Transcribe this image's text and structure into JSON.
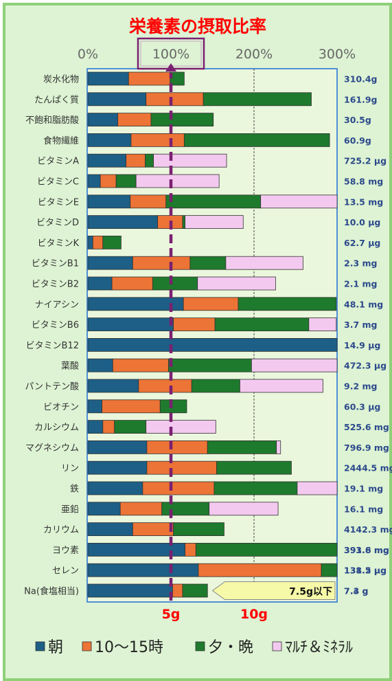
{
  "chart_data": {
    "type": "bar",
    "stacked": true,
    "orientation": "horizontal",
    "title": "栄養素の摂取比率",
    "x_ticks_pct": [
      "0%",
      "100%",
      "200%",
      "300%"
    ],
    "xlim": [
      0,
      300
    ],
    "highlight_tick": "100%",
    "reference_line_pct": 100,
    "grid_lines_pct": [
      200
    ],
    "salt_axis_labels": [
      "5g",
      "10g"
    ],
    "salt_axis_positions_g": [
      5,
      10
    ],
    "salt_annotation": "7.5g以下",
    "salt_annotation_end_g": 7.5,
    "legend_position": "bottom",
    "legend": [
      "朝",
      "10～15時",
      "夕・晩",
      "ﾏﾙﾁ＆ﾐﾈﾗﾙ"
    ],
    "colors": {
      "朝": "#1d5f86",
      "10～15時": "#ec7436",
      "夕・晩": "#1e7a2c",
      "ﾏﾙﾁ＆ﾐﾈﾗﾙ": "#f3c9ef",
      "title": "#ff0000",
      "reference_line": "#7a2070",
      "salt_labels": "#ff0000",
      "totals": "#2d4a8c",
      "plot_border": "#4f8fd6"
    },
    "categories": [
      "炭水化物",
      "たんぱく質",
      "不飽和脂肪酸",
      "食物繊維",
      "ビタミンA",
      "ビタミンC",
      "ビタミンE",
      "ビタミンD",
      "ビタミンK",
      "ビタミンB1",
      "ビタミンB2",
      "ナイアシン",
      "ビタミンB6",
      "ビタミンB12",
      "葉酸",
      "パントテン酸",
      "ビオチン",
      "カルシウム",
      "マグネシウム",
      "リン",
      "鉄",
      "亜鉛",
      "カリウム",
      "ヨウ素",
      "セレン",
      "Na(食塩相当)"
    ],
    "series": [
      {
        "name": "朝",
        "values": [
          49,
          70,
          36,
          52,
          46,
          15,
          51,
          84,
          6,
          54,
          29,
          115,
          103,
          300,
          30,
          61,
          17,
          18,
          71,
          71,
          66,
          39,
          54,
          117,
          133,
          102
        ]
      },
      {
        "name": "10～15時",
        "values": [
          50,
          69,
          40,
          64,
          23,
          19,
          43,
          30,
          12,
          69,
          49,
          66,
          50,
          0,
          67,
          64,
          70,
          14,
          73,
          84,
          86,
          50,
          49,
          13,
          148,
          12
        ]
      },
      {
        "name": "夕・晩",
        "values": [
          17,
          130,
          75,
          175,
          10,
          24,
          114,
          3,
          22,
          43,
          54,
          118,
          113,
          0,
          100,
          58,
          32,
          38,
          83,
          90,
          100,
          57,
          61,
          170,
          19,
          30
        ]
      },
      {
        "name": "ﾏﾙﾁ＆ﾐﾈﾗﾙ",
        "values": [
          0,
          0,
          0,
          0,
          88,
          100,
          92,
          70,
          0,
          93,
          94,
          0,
          33,
          0,
          103,
          100,
          0,
          84,
          5,
          0,
          48,
          83,
          0,
          0,
          0,
          0
        ]
      }
    ],
    "totals": [
      "310.4g",
      "161.9g",
      "30.5g",
      "60.9g",
      "725.2 μg",
      "58.8 mg",
      "13.5 mg",
      "10.0 μg",
      "62.7 μg",
      "2.3 mg",
      "2.1 mg",
      "48.1 mg",
      "3.7 mg",
      "14.9 μg",
      "472.3 μg",
      "9.2 mg",
      "60.3 μg",
      "525.6 mg",
      "796.9 mg",
      "2444.5 mg",
      "19.1 mg",
      "16.1 mg",
      "4142.3 mg",
      "393.6 mg",
      "138.5 μg",
      "7.3 g"
    ],
    "totals_overprint": {
      "ヨウ素": "391.8 mg",
      "セレン": "131.2 μg",
      "Na(食塩相当)": "7.4 g"
    }
  }
}
